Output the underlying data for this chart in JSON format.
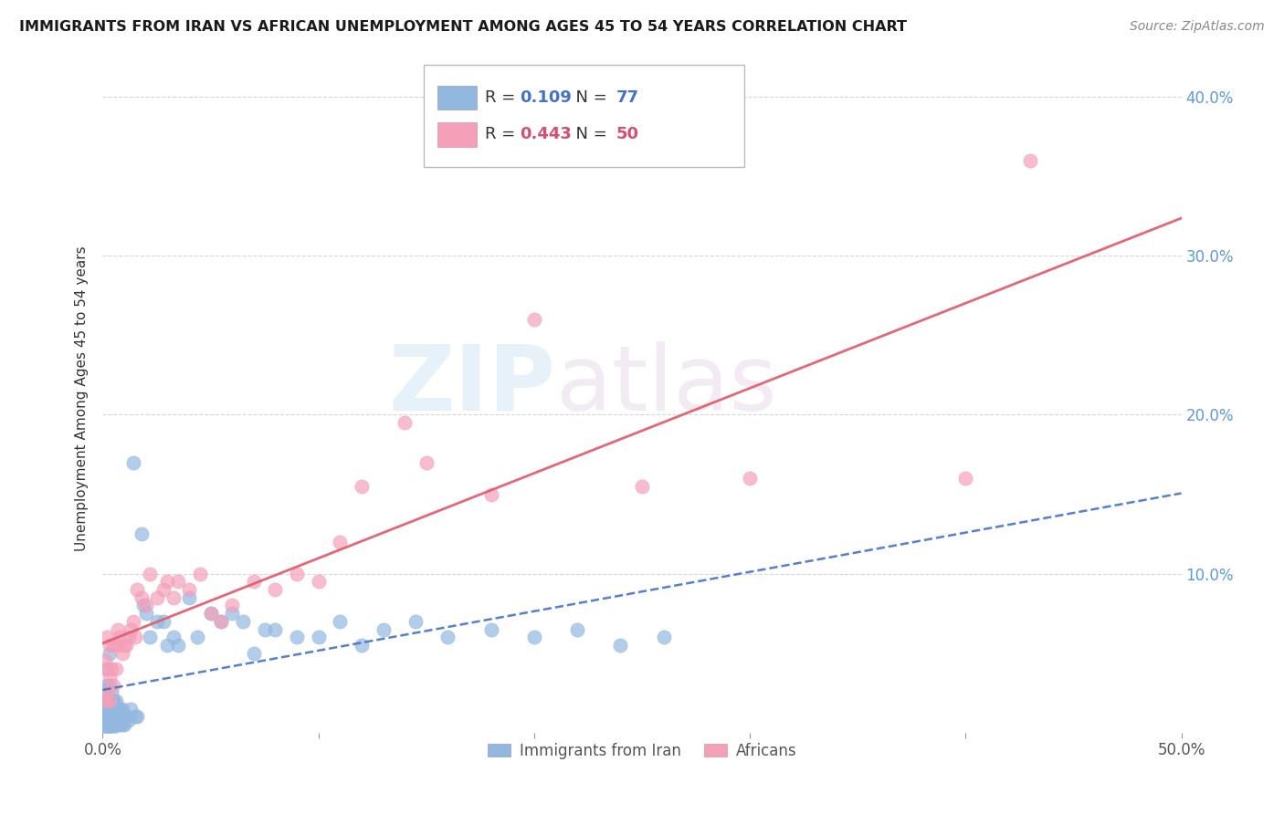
{
  "title": "IMMIGRANTS FROM IRAN VS AFRICAN UNEMPLOYMENT AMONG AGES 45 TO 54 YEARS CORRELATION CHART",
  "source": "Source: ZipAtlas.com",
  "ylabel": "Unemployment Among Ages 45 to 54 years",
  "xlim": [
    0.0,
    0.5
  ],
  "ylim": [
    0.0,
    0.42
  ],
  "xticks": [
    0.0,
    0.1,
    0.2,
    0.3,
    0.4,
    0.5
  ],
  "xtick_labels": [
    "0.0%",
    "",
    "",
    "",
    "",
    "50.0%"
  ],
  "yticks": [
    0.0,
    0.1,
    0.2,
    0.3,
    0.4
  ],
  "ytick_labels_left": [
    "",
    "",
    "",
    "",
    ""
  ],
  "ytick_labels_right": [
    "",
    "10.0%",
    "20.0%",
    "30.0%",
    "40.0%"
  ],
  "iran_R": 0.109,
  "iran_N": 77,
  "african_R": 0.443,
  "african_N": 50,
  "iran_color": "#92b8e0",
  "african_color": "#f4a0b8",
  "iran_line_color": "#4472c4",
  "african_line_color": "#e06070",
  "watermark_zip": "ZIP",
  "watermark_atlas": "atlas",
  "legend_label_iran": "Immigrants from Iran",
  "legend_label_african": "Africans",
  "iran_scatter_x": [
    0.001,
    0.001,
    0.001,
    0.001,
    0.001,
    0.002,
    0.002,
    0.002,
    0.002,
    0.002,
    0.003,
    0.003,
    0.003,
    0.003,
    0.003,
    0.004,
    0.004,
    0.004,
    0.004,
    0.005,
    0.005,
    0.005,
    0.005,
    0.006,
    0.006,
    0.006,
    0.007,
    0.007,
    0.008,
    0.008,
    0.009,
    0.009,
    0.01,
    0.01,
    0.011,
    0.012,
    0.013,
    0.014,
    0.015,
    0.016,
    0.018,
    0.019,
    0.02,
    0.022,
    0.025,
    0.028,
    0.03,
    0.033,
    0.035,
    0.04,
    0.044,
    0.05,
    0.055,
    0.06,
    0.065,
    0.07,
    0.075,
    0.08,
    0.09,
    0.1,
    0.11,
    0.12,
    0.13,
    0.145,
    0.16,
    0.18,
    0.2,
    0.22,
    0.24,
    0.26,
    0.003,
    0.002,
    0.004,
    0.001,
    0.002,
    0.003,
    0.005
  ],
  "iran_scatter_y": [
    0.005,
    0.01,
    0.015,
    0.02,
    0.025,
    0.005,
    0.01,
    0.015,
    0.02,
    0.03,
    0.005,
    0.01,
    0.015,
    0.02,
    0.03,
    0.005,
    0.01,
    0.015,
    0.025,
    0.005,
    0.01,
    0.015,
    0.02,
    0.005,
    0.01,
    0.02,
    0.005,
    0.015,
    0.005,
    0.015,
    0.005,
    0.015,
    0.005,
    0.01,
    0.01,
    0.008,
    0.015,
    0.17,
    0.01,
    0.01,
    0.125,
    0.08,
    0.075,
    0.06,
    0.07,
    0.07,
    0.055,
    0.06,
    0.055,
    0.085,
    0.06,
    0.075,
    0.07,
    0.075,
    0.07,
    0.05,
    0.065,
    0.065,
    0.06,
    0.06,
    0.07,
    0.055,
    0.065,
    0.07,
    0.06,
    0.065,
    0.06,
    0.065,
    0.055,
    0.06,
    0.005,
    0.002,
    0.003,
    0.003,
    0.04,
    0.05,
    0.02
  ],
  "african_scatter_x": [
    0.001,
    0.001,
    0.002,
    0.002,
    0.002,
    0.003,
    0.003,
    0.003,
    0.004,
    0.005,
    0.005,
    0.006,
    0.007,
    0.007,
    0.008,
    0.009,
    0.01,
    0.011,
    0.012,
    0.013,
    0.014,
    0.015,
    0.016,
    0.018,
    0.02,
    0.022,
    0.025,
    0.028,
    0.03,
    0.033,
    0.035,
    0.04,
    0.045,
    0.05,
    0.055,
    0.06,
    0.07,
    0.08,
    0.09,
    0.1,
    0.11,
    0.12,
    0.14,
    0.15,
    0.18,
    0.2,
    0.25,
    0.3,
    0.4,
    0.43
  ],
  "african_scatter_y": [
    0.02,
    0.045,
    0.025,
    0.04,
    0.06,
    0.02,
    0.035,
    0.055,
    0.04,
    0.03,
    0.055,
    0.04,
    0.055,
    0.065,
    0.06,
    0.05,
    0.055,
    0.055,
    0.06,
    0.065,
    0.07,
    0.06,
    0.09,
    0.085,
    0.08,
    0.1,
    0.085,
    0.09,
    0.095,
    0.085,
    0.095,
    0.09,
    0.1,
    0.075,
    0.07,
    0.08,
    0.095,
    0.09,
    0.1,
    0.095,
    0.12,
    0.155,
    0.195,
    0.17,
    0.15,
    0.26,
    0.155,
    0.16,
    0.16,
    0.36
  ]
}
